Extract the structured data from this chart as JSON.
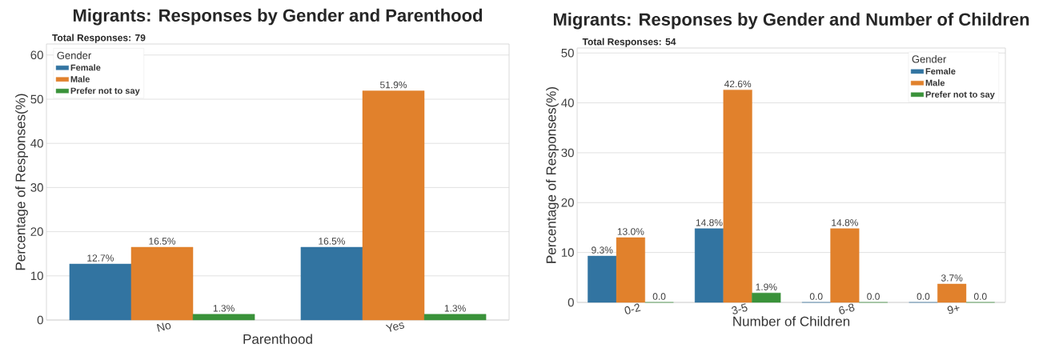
{
  "chart_data": [
    {
      "type": "bar",
      "title": "Migrants: Responses by Gender and Parenthood",
      "subtitle": "Total Responses: 79",
      "xlabel": "Parenthood",
      "ylabel": "Percentage of Responses(%)",
      "legend_title": "Gender",
      "legend": "top left",
      "grid": "y",
      "categories": [
        "No",
        "Yes"
      ],
      "ylim": [
        0,
        62.5
      ],
      "yticks": [
        0,
        10,
        20,
        30,
        40,
        50,
        60
      ],
      "series": [
        {
          "name": "Female",
          "color": "#3274a1",
          "values": [
            12.7,
            16.5
          ],
          "value_labels": [
            "12.7%",
            "16.5%"
          ]
        },
        {
          "name": "Male",
          "color": "#e1812c",
          "values": [
            16.5,
            51.9
          ],
          "value_labels": [
            "16.5%",
            "51.9%"
          ]
        },
        {
          "name": "Prefer not to say",
          "color": "#3a923a",
          "values": [
            1.3,
            1.3
          ],
          "value_labels": [
            "1.3%",
            "1.3%"
          ]
        }
      ]
    },
    {
      "type": "bar",
      "title": "Migrants: Responses by Gender and Number of Children",
      "subtitle": "Total Responses: 54",
      "xlabel": "Number of Children",
      "ylabel": "Percentage of Responses(%)",
      "legend_title": "Gender",
      "legend": "top right",
      "grid": "y",
      "categories": [
        "0-2",
        "3-5",
        "6-8",
        "9+"
      ],
      "ylim": [
        0,
        51
      ],
      "yticks": [
        0,
        10,
        20,
        30,
        40,
        50
      ],
      "series": [
        {
          "name": "Female",
          "color": "#3274a1",
          "values": [
            9.3,
            14.8,
            0,
            0
          ],
          "value_labels": [
            "9.3%",
            "14.8%",
            "0.0",
            "0.0"
          ]
        },
        {
          "name": "Male",
          "color": "#e1812c",
          "values": [
            13.0,
            42.6,
            14.8,
            3.7
          ],
          "value_labels": [
            "13.0%",
            "42.6%",
            "14.8%",
            "3.7%"
          ]
        },
        {
          "name": "Prefer not to say",
          "color": "#3a923a",
          "values": [
            0,
            1.9,
            0,
            0
          ],
          "value_labels": [
            "0.0",
            "1.9%",
            "0.0",
            "0.0"
          ]
        }
      ]
    }
  ]
}
